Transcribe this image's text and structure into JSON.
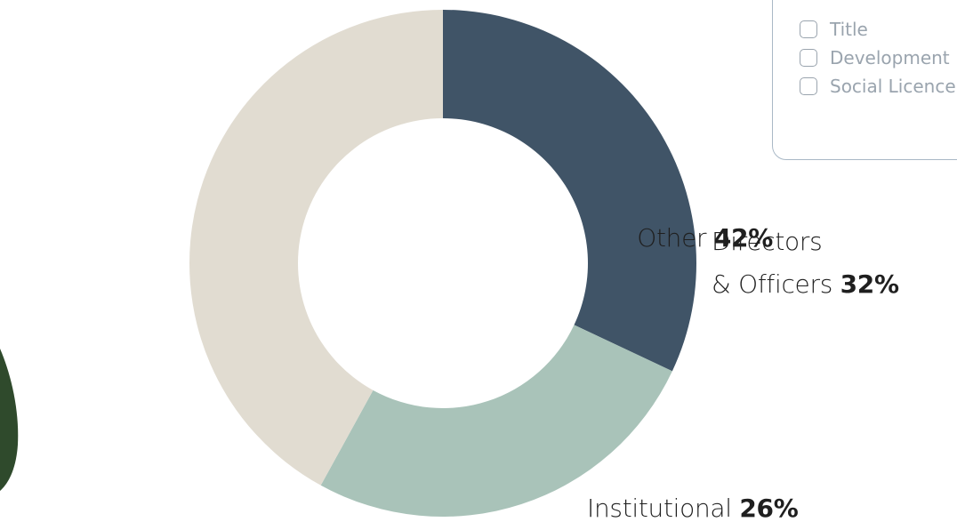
{
  "chart_data": {
    "type": "donut",
    "categories": [
      "Directors\n& Officers",
      "Institutional",
      "Other"
    ],
    "values": [
      32,
      26,
      42
    ],
    "value_labels": [
      "32%",
      "26%",
      "42%"
    ],
    "colors": [
      "#405467",
      "#a9c3b9",
      "#e1dcd1"
    ]
  },
  "filters": {
    "options": [
      "Title",
      "Development",
      "Social Licence"
    ]
  }
}
